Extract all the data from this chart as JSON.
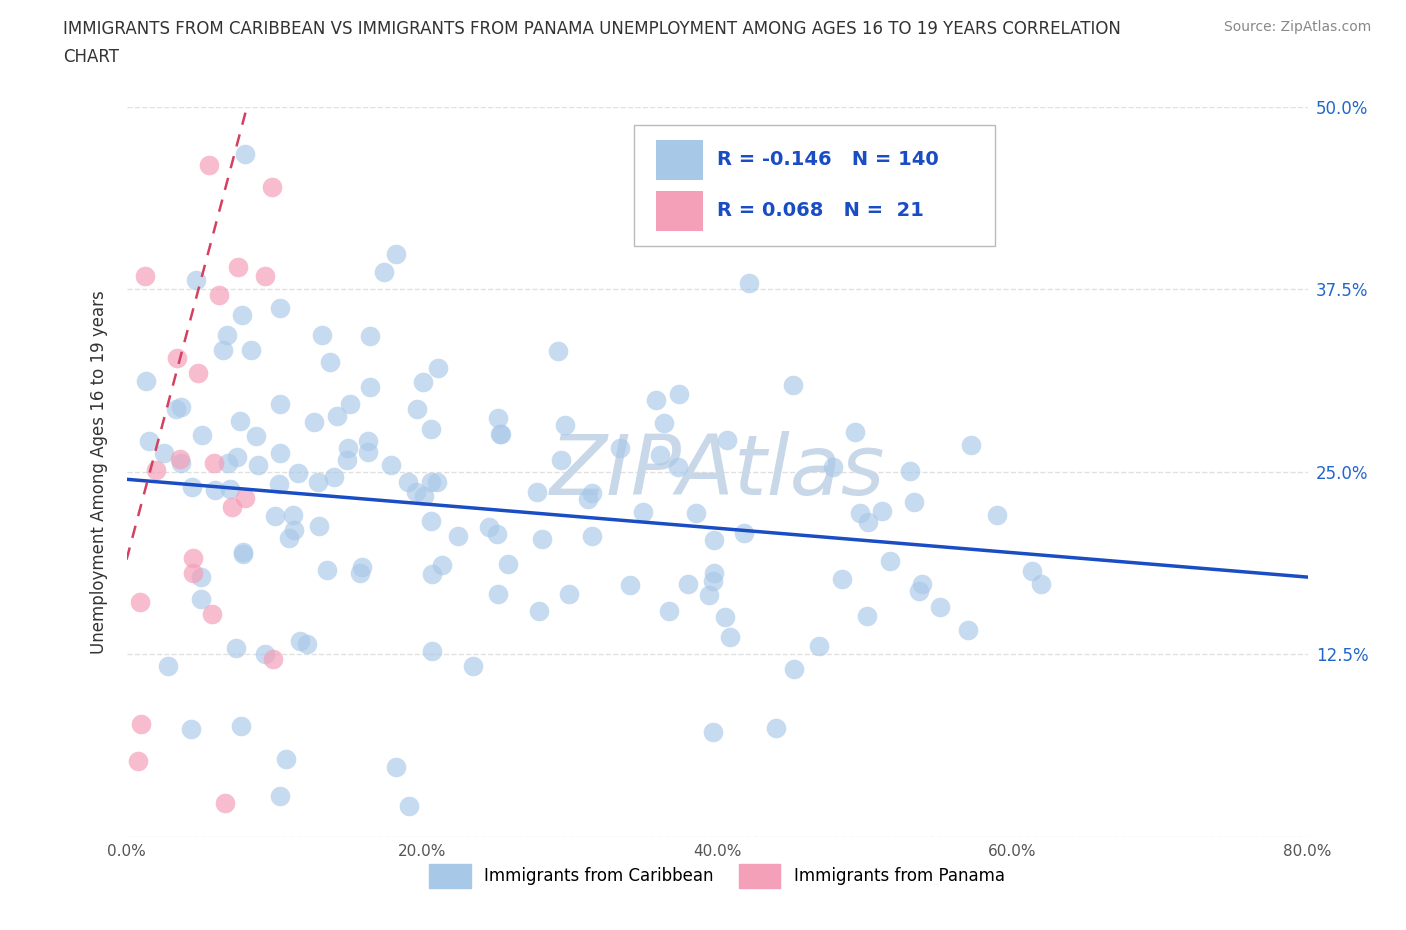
{
  "title_line1": "IMMIGRANTS FROM CARIBBEAN VS IMMIGRANTS FROM PANAMA UNEMPLOYMENT AMONG AGES 16 TO 19 YEARS CORRELATION",
  "title_line2": "CHART",
  "source": "Source: ZipAtlas.com",
  "ylabel": "Unemployment Among Ages 16 to 19 years",
  "xlim": [
    0.0,
    0.8
  ],
  "ylim": [
    0.0,
    0.5
  ],
  "xticks": [
    0.0,
    0.2,
    0.4,
    0.6,
    0.8
  ],
  "yticks": [
    0.0,
    0.125,
    0.25,
    0.375,
    0.5
  ],
  "ytick_labels_right": [
    "",
    "12.5%",
    "25.0%",
    "37.5%",
    "50.0%"
  ],
  "caribbean_color": "#a8c8e8",
  "panama_color": "#f4a0b8",
  "caribbean_R": -0.146,
  "caribbean_N": 140,
  "panama_R": 0.068,
  "panama_N": 21,
  "trend_blue": "#1a4dc4",
  "trend_pink": "#d44060",
  "watermark": "ZIPAtlas",
  "watermark_color": "#c8d8e8",
  "legend_label_caribbean": "Immigrants from Caribbean",
  "legend_label_panama": "Immigrants from Panama",
  "blue_trend_start_y": 0.245,
  "blue_trend_end_y": 0.178,
  "pink_trend_slope": 3.8,
  "pink_trend_intercept": 0.19
}
